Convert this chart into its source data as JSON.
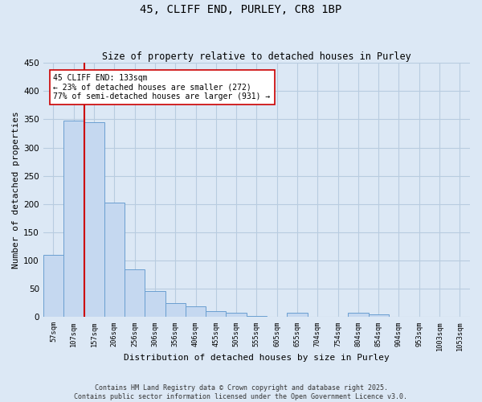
{
  "title": "45, CLIFF END, PURLEY, CR8 1BP",
  "subtitle": "Size of property relative to detached houses in Purley",
  "xlabel": "Distribution of detached houses by size in Purley",
  "ylabel": "Number of detached properties",
  "bin_labels": [
    "57sqm",
    "107sqm",
    "157sqm",
    "206sqm",
    "256sqm",
    "306sqm",
    "356sqm",
    "406sqm",
    "455sqm",
    "505sqm",
    "555sqm",
    "605sqm",
    "655sqm",
    "704sqm",
    "754sqm",
    "804sqm",
    "854sqm",
    "904sqm",
    "953sqm",
    "1003sqm",
    "1053sqm"
  ],
  "bar_values": [
    110,
    348,
    345,
    202,
    85,
    46,
    25,
    19,
    10,
    7,
    2,
    0,
    7,
    0,
    0,
    7,
    5,
    0,
    0,
    0,
    0
  ],
  "bar_color": "#c5d8f0",
  "bar_edge_color": "#6a9fd0",
  "grid_color": "#b8cce0",
  "background_color": "#dce8f5",
  "vline_x_index": 1.52,
  "vline_color": "#cc0000",
  "property_label": "45 CLIFF END: 133sqm",
  "annotation_line1": "← 23% of detached houses are smaller (272)",
  "annotation_line2": "77% of semi-detached houses are larger (931) →",
  "annotation_box_color": "#ffffff",
  "annotation_box_edge": "#cc0000",
  "footer_line1": "Contains HM Land Registry data © Crown copyright and database right 2025.",
  "footer_line2": "Contains public sector information licensed under the Open Government Licence v3.0.",
  "ylim": [
    0,
    450
  ],
  "yticks": [
    0,
    50,
    100,
    150,
    200,
    250,
    300,
    350,
    400,
    450
  ]
}
